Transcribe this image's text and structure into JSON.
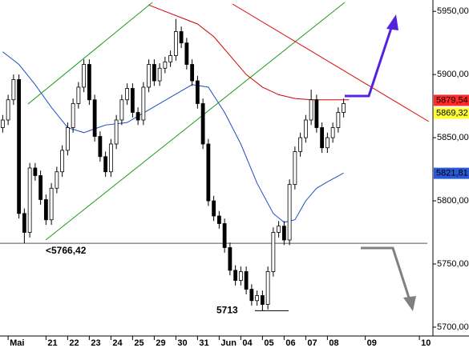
{
  "chart_data": {
    "type": "candlestick",
    "categories": [
      null,
      "Mai",
      null,
      null,
      null,
      null,
      null,
      null,
      "21",
      null,
      null,
      null,
      "22",
      null,
      null,
      null,
      "23",
      null,
      null,
      null,
      "24",
      null,
      null,
      null,
      "25",
      null,
      null,
      null,
      "29",
      null,
      null,
      null,
      "30",
      null,
      null,
      null,
      "31",
      null,
      null,
      null,
      "Jun",
      null,
      null,
      null,
      "04",
      null,
      null,
      null,
      "05",
      null,
      null,
      null,
      "06",
      null,
      null,
      null,
      "07",
      null,
      null,
      null,
      "08",
      null,
      null,
      null,
      null,
      null,
      null,
      "09",
      null,
      null,
      null,
      null,
      null,
      null,
      null,
      null,
      null,
      "10",
      null,
      null
    ],
    "open": [
      5858,
      5864,
      5880,
      5896,
      5790,
      5775,
      5826,
      5820,
      5801,
      5785,
      5810,
      5823,
      5840,
      5858,
      5877,
      5890,
      5908,
      5880,
      5851,
      5835,
      5823,
      5845,
      5864,
      5880,
      5889,
      5870,
      5864,
      5890,
      5908,
      5895,
      5905,
      5910,
      5915,
      5934,
      5925,
      5908,
      5895,
      5877,
      5845,
      5800,
      5788,
      5782,
      5763,
      5745,
      5737,
      5744,
      5730,
      5721,
      5725,
      5718,
      5744,
      5775,
      5780,
      5769,
      5813,
      5839,
      5850,
      5864,
      5880,
      5858,
      5842,
      5850,
      5858,
      5870,
      null,
      null,
      null,
      null,
      null,
      null,
      null,
      null,
      null,
      null,
      null,
      null,
      null,
      null,
      null,
      null
    ],
    "high": [
      5868,
      5884,
      5900,
      5900,
      5794,
      5830,
      5830,
      5824,
      5805,
      5814,
      5827,
      5844,
      5862,
      5881,
      5894,
      5912,
      5912,
      5884,
      5855,
      5839,
      5849,
      5868,
      5884,
      5893,
      5893,
      5874,
      5894,
      5912,
      5912,
      5909,
      5914,
      5919,
      5944,
      5938,
      5929,
      5912,
      5899,
      5881,
      5849,
      5804,
      5792,
      5786,
      5767,
      5749,
      5748,
      5748,
      5734,
      5729,
      5729,
      5748,
      5779,
      5784,
      5784,
      5817,
      5843,
      5854,
      5868,
      5888,
      5884,
      5862,
      5854,
      5862,
      5874,
      5881,
      null,
      null,
      null,
      null,
      null,
      null,
      null,
      null,
      null,
      null,
      null,
      null,
      null,
      null,
      null,
      null
    ],
    "low": [
      5854,
      5860,
      5876,
      5786,
      5766.42,
      5771,
      5816,
      5797,
      5781,
      5781,
      5806,
      5819,
      5836,
      5854,
      5873,
      5886,
      5876,
      5847,
      5831,
      5819,
      5819,
      5841,
      5860,
      5876,
      5866,
      5860,
      5860,
      5886,
      5891,
      5891,
      5901,
      5906,
      5911,
      5921,
      5904,
      5891,
      5873,
      5841,
      5796,
      5784,
      5778,
      5759,
      5741,
      5733,
      5733,
      5726,
      5717,
      5717,
      5713,
      5714,
      5740,
      5771,
      5765,
      5765,
      5809,
      5835,
      5846,
      5860,
      5854,
      5838,
      5838,
      5846,
      5854,
      5866,
      null,
      null,
      null,
      null,
      null,
      null,
      null,
      null,
      null,
      null,
      null,
      null,
      null,
      null,
      null,
      null
    ],
    "close": [
      5864,
      5880,
      5896,
      5790,
      5775,
      5826,
      5820,
      5801,
      5785,
      5810,
      5823,
      5840,
      5858,
      5877,
      5890,
      5908,
      5880,
      5851,
      5835,
      5823,
      5845,
      5864,
      5880,
      5889,
      5870,
      5864,
      5890,
      5908,
      5895,
      5905,
      5910,
      5915,
      5934,
      5925,
      5908,
      5895,
      5877,
      5845,
      5800,
      5788,
      5782,
      5763,
      5745,
      5737,
      5744,
      5730,
      5721,
      5725,
      5718,
      5744,
      5775,
      5780,
      5769,
      5813,
      5839,
      5850,
      5864,
      5880,
      5858,
      5842,
      5850,
      5858,
      5870,
      5877,
      null,
      null,
      null,
      null,
      null,
      null,
      null,
      null,
      null,
      null,
      null,
      null,
      null,
      null,
      null,
      null
    ],
    "moving_averages": [
      {
        "color": "#1f4fbf",
        "x": [
          0,
          3,
          6,
          9,
          12,
          15,
          19,
          23,
          27,
          31,
          35,
          38,
          41,
          44,
          47,
          50,
          52,
          54,
          56,
          58,
          60,
          63
        ],
        "values": [
          5918,
          5908,
          5892,
          5874,
          5858,
          5854,
          5860,
          5862,
          5872,
          5882,
          5892,
          5890,
          5870,
          5845,
          5814,
          5790,
          5783,
          5785,
          5800,
          5810,
          5815,
          5822
        ]
      },
      {
        "color": "#d40000",
        "x": [
          27,
          30,
          33,
          36,
          39,
          42,
          45,
          48,
          51,
          54,
          57,
          60,
          64
        ],
        "values": [
          5955,
          5950,
          5945,
          5940,
          5930,
          5915,
          5900,
          5890,
          5884,
          5881,
          5880,
          5880,
          5880
        ]
      }
    ],
    "ylim": [
      5693,
      5959
    ],
    "yticks": [
      {
        "value": 5700,
        "label": "5700,00"
      },
      {
        "value": 5750,
        "label": "5750,00"
      },
      {
        "value": 5800,
        "label": "5800,00"
      },
      {
        "value": 5850,
        "label": "5850,00"
      },
      {
        "value": 5900,
        "label": "5900,00"
      },
      {
        "value": 5950,
        "label": "5950,00"
      }
    ],
    "price_tags": [
      {
        "value": 5879.54,
        "label": "5879,54",
        "color": "#ff2a2a"
      },
      {
        "value": 5869.32,
        "label": "5869,32",
        "color": "#ffff33"
      },
      {
        "value": 5821.81,
        "label": "5821,81",
        "color": "#2a5ad8"
      }
    ],
    "support": {
      "value": 5766.42,
      "label": "<5766,42"
    },
    "low_mark": {
      "value": 5713,
      "label": "5713"
    }
  }
}
